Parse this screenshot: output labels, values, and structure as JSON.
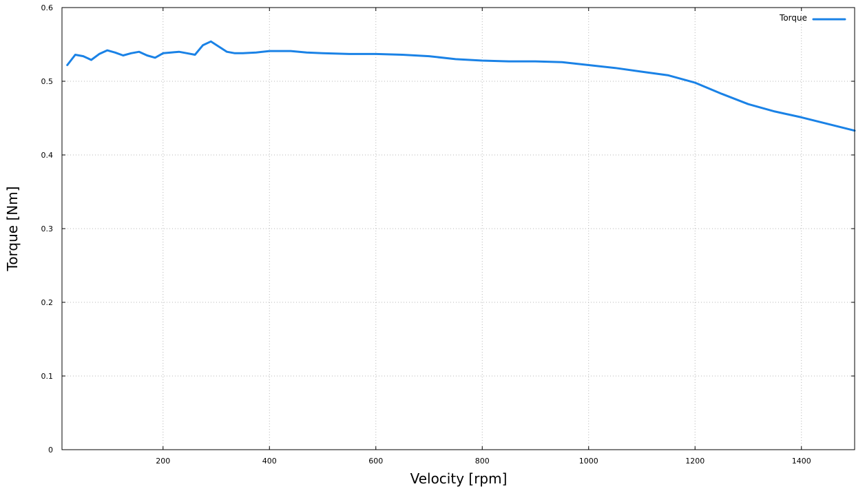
{
  "chart_data": {
    "type": "line",
    "title": "",
    "xlabel": "Velocity [rpm]",
    "ylabel": "Torque [Nm]",
    "xlim": [
      10,
      1500
    ],
    "ylim": [
      0,
      0.6
    ],
    "x_ticks": [
      200,
      400,
      600,
      800,
      1000,
      1200,
      1400
    ],
    "x_tick_labels": [
      "200",
      "400",
      "600",
      "800",
      "1000",
      "1200",
      "1400"
    ],
    "y_ticks": [
      0,
      0.1,
      0.2,
      0.3,
      0.4,
      0.5,
      0.6
    ],
    "y_tick_labels": [
      "0",
      "0.1",
      "0.2",
      "0.3",
      "0.4",
      "0.5",
      "0.6"
    ],
    "grid": true,
    "legend_position": "top-right",
    "series": [
      {
        "name": "Torque",
        "color": "#1a82e6",
        "x": [
          20,
          35,
          50,
          65,
          80,
          95,
          110,
          125,
          140,
          155,
          170,
          185,
          200,
          215,
          230,
          245,
          260,
          275,
          290,
          305,
          320,
          335,
          350,
          375,
          400,
          440,
          470,
          500,
          550,
          600,
          650,
          700,
          750,
          800,
          850,
          900,
          950,
          1000,
          1050,
          1100,
          1150,
          1200,
          1250,
          1300,
          1350,
          1400,
          1450,
          1500
        ],
        "y": [
          0.522,
          0.536,
          0.534,
          0.529,
          0.537,
          0.542,
          0.539,
          0.535,
          0.538,
          0.54,
          0.535,
          0.532,
          0.538,
          0.539,
          0.54,
          0.538,
          0.536,
          0.549,
          0.554,
          0.547,
          0.54,
          0.538,
          0.538,
          0.539,
          0.541,
          0.541,
          0.539,
          0.538,
          0.537,
          0.537,
          0.536,
          0.534,
          0.53,
          0.528,
          0.527,
          0.527,
          0.526,
          0.522,
          0.518,
          0.513,
          0.508,
          0.498,
          0.483,
          0.469,
          0.459,
          0.451,
          0.442,
          0.433
        ]
      }
    ]
  }
}
